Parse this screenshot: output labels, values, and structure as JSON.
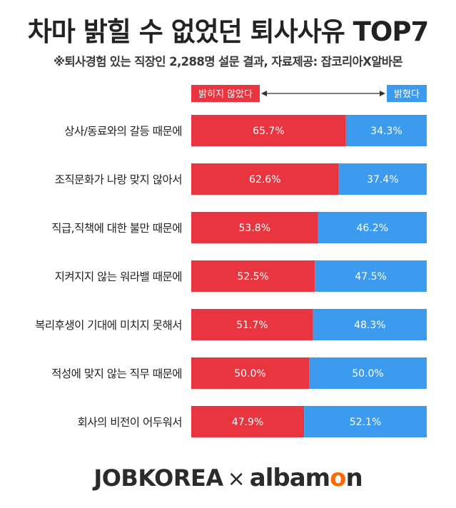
{
  "title": "차마 밝힐 수 없었던 퇴사사유 TOP7",
  "subtitle": "※퇴사경험 있는 직장인 2,288명 설문 결과, 자료제공: 잡코리아X알바몬",
  "colors": {
    "hidden": "#e8353f",
    "revealed": "#3c9bef"
  },
  "chart_data": {
    "type": "bar",
    "stacked": true,
    "orientation": "horizontal",
    "title": "차마 밝힐 수 없었던 퇴사사유 TOP7",
    "categories": [
      "상사/동료와의 갈등 때문에",
      "조직문화가 나랑 맞지 않아서",
      "직급,직책에 대한 불만 때문에",
      "지켜지지 않는 워라밸 때문에",
      "복리후생이 기대에 미치지 못해서",
      "적성에 맞지 않는 직무 때문에",
      "회사의 비전이 어두워서"
    ],
    "series": [
      {
        "name": "밝히지 않았다",
        "values": [
          65.7,
          62.6,
          53.8,
          52.5,
          51.7,
          50.0,
          47.9
        ]
      },
      {
        "name": "밝혔다",
        "values": [
          34.3,
          37.4,
          46.2,
          47.5,
          48.3,
          50.0,
          52.1
        ]
      }
    ],
    "unit": "%",
    "xlim": [
      0,
      100
    ],
    "legend": "top"
  },
  "footer": {
    "brand_left": "JOBKOREA",
    "separator": "×",
    "brand_right_a": "albam",
    "brand_right_b": "o",
    "brand_right_c": "n"
  }
}
